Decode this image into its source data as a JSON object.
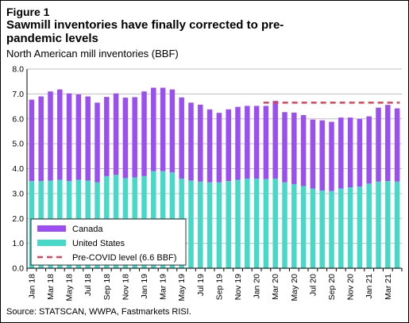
{
  "figure_label": "Figure 1",
  "title": "Sawmill inventories have finally corrected to pre-pandemic levels",
  "subtitle": "North American mill inventories (BBF)",
  "source": "Source: STATSCAN, WWPA, Fastmarkets RISI.",
  "colors": {
    "canada": "#9b4ff0",
    "united_states": "#47d9c8",
    "precovid": "#d9445a",
    "grid": "#bfbfbf"
  },
  "chart_data": {
    "type": "bar",
    "stacked": true,
    "categories": [
      "Jan 18",
      "Feb 18",
      "Mar 18",
      "Apr 18",
      "May 18",
      "Jun 18",
      "Jul 18",
      "Aug 18",
      "Sep 18",
      "Oct 18",
      "Nov 18",
      "Dec 18",
      "Jan 19",
      "Feb 19",
      "Mar 19",
      "Apr 19",
      "May 19",
      "Jun 19",
      "Jul 19",
      "Aug 19",
      "Sep 19",
      "Oct 19",
      "Nov 19",
      "Dec 19",
      "Jan 20",
      "Feb 20",
      "Mar 20",
      "Apr 20",
      "May 20",
      "Jun 20",
      "Jul 20",
      "Aug 20",
      "Sep 20",
      "Oct 20",
      "Nov 20",
      "Dec 20",
      "Jan 21",
      "Feb 21",
      "Mar 21",
      "Apr 21"
    ],
    "tick_labels": [
      "Jan 18",
      "Mar 18",
      "May 18",
      "Jul 18",
      "Sep 18",
      "Nov 18",
      "Jan 19",
      "Mar 19",
      "May 19",
      "Jul 19",
      "Sep 19",
      "Nov 19",
      "Jan 20",
      "Mar 20",
      "May 20",
      "Jul 20",
      "Sep 20",
      "Nov 20",
      "Jan 21",
      "Mar 21"
    ],
    "series": [
      {
        "name": "United States",
        "values": [
          3.5,
          3.5,
          3.52,
          3.55,
          3.5,
          3.55,
          3.52,
          3.45,
          3.7,
          3.75,
          3.62,
          3.65,
          3.7,
          3.9,
          3.9,
          3.85,
          3.6,
          3.52,
          3.48,
          3.45,
          3.45,
          3.5,
          3.55,
          3.6,
          3.6,
          3.58,
          3.6,
          3.45,
          3.38,
          3.3,
          3.2,
          3.12,
          3.1,
          3.2,
          3.25,
          3.28,
          3.4,
          3.48,
          3.5,
          3.48
        ]
      },
      {
        "name": "Canada",
        "values": [
          3.27,
          3.4,
          3.58,
          3.63,
          3.52,
          3.43,
          3.38,
          3.2,
          3.18,
          3.27,
          3.23,
          3.22,
          3.4,
          3.35,
          3.35,
          3.33,
          3.26,
          3.13,
          3.09,
          2.93,
          2.79,
          2.88,
          2.93,
          2.92,
          2.92,
          2.94,
          3.12,
          2.82,
          2.87,
          2.85,
          2.77,
          2.82,
          2.78,
          2.85,
          2.8,
          2.72,
          2.7,
          2.97,
          3.06,
          2.94
        ]
      }
    ],
    "reference_line": {
      "name": "Pre-COVID level (6.6 BBF)",
      "value": 6.65,
      "from_category": "Feb 20",
      "to_category": "Apr 21"
    },
    "ylim": [
      0,
      8
    ],
    "yticks": [
      "0.0",
      "1.0",
      "2.0",
      "3.0",
      "4.0",
      "5.0",
      "6.0",
      "7.0",
      "8.0"
    ],
    "grid": true,
    "legend": {
      "placement": "bottom-left",
      "entries": [
        {
          "label": "Canada",
          "kind": "canada"
        },
        {
          "label": "United States",
          "kind": "united_states"
        },
        {
          "label": "Pre-COVID level (6.6 BBF)",
          "kind": "precovid"
        }
      ]
    }
  }
}
